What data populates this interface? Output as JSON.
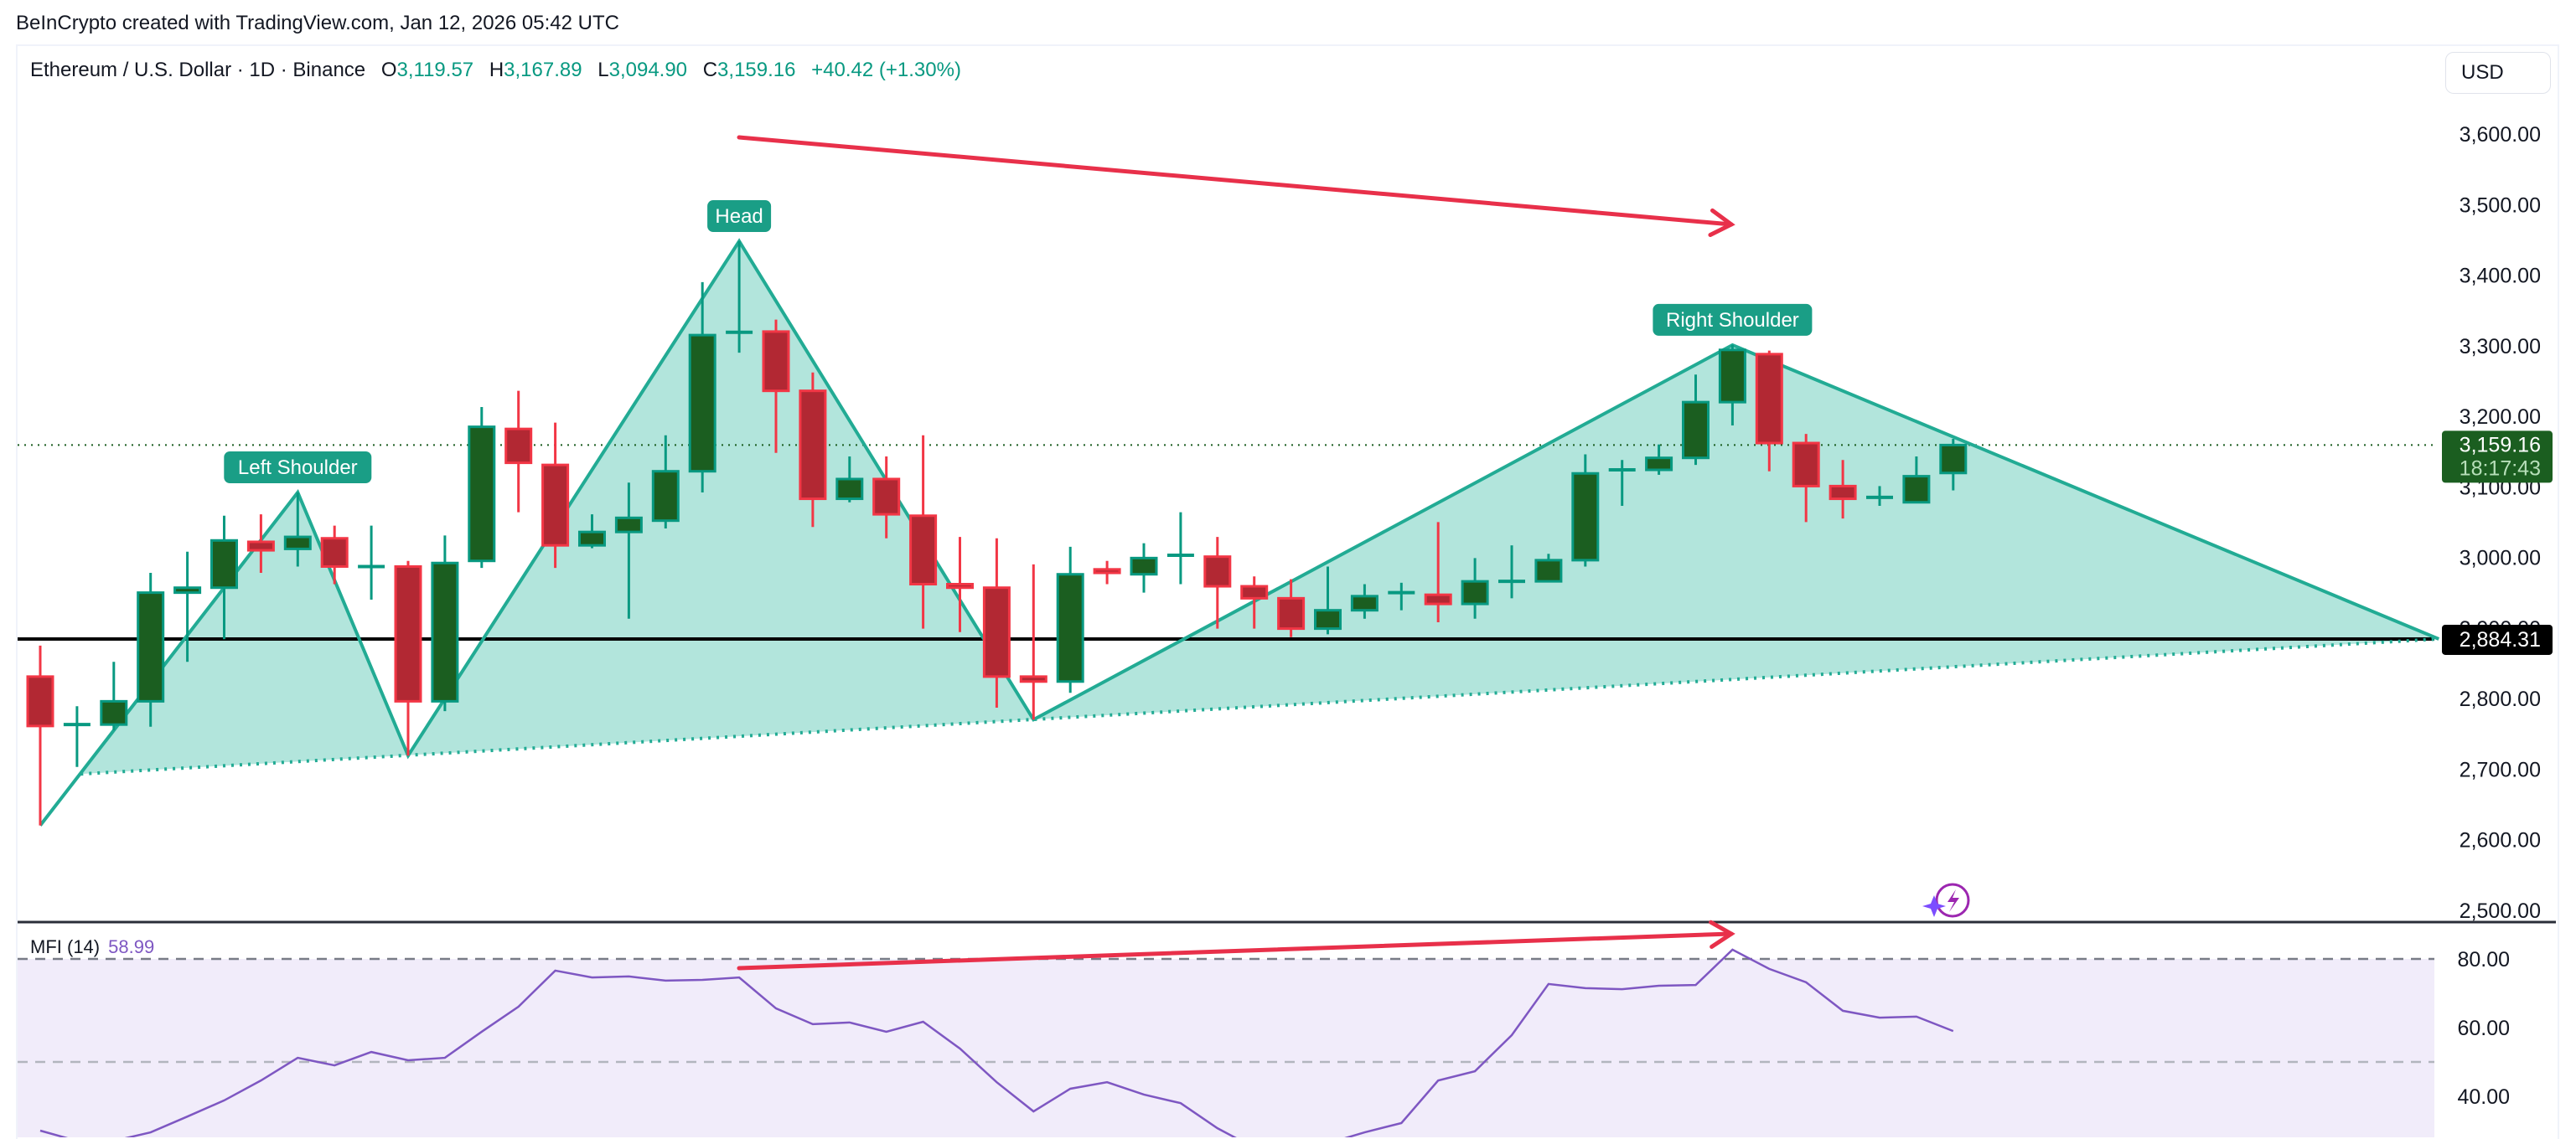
{
  "header": {
    "attribution": "BeInCrypto created with TradingView.com, Jan 12, 2026 05:42 UTC"
  },
  "legend": {
    "symbol": "Ethereum / U.S. Dollar · 1D · Binance",
    "open_label": "O",
    "open": "3,119.57",
    "high_label": "H",
    "high": "3,167.89",
    "low_label": "L",
    "low": "3,094.90",
    "close_label": "C",
    "close": "3,159.16",
    "change": "+40.42 (+1.30%)"
  },
  "currency_button": "USD",
  "mfi_legend": {
    "name": "MFI (14)",
    "value": "58.99"
  },
  "colors": {
    "up_body": "#1b5e20",
    "up_border": "#089981",
    "down_body": "#b22833",
    "down_border": "#f23645",
    "pattern_line": "#22ab94",
    "pattern_fill": "#b2e5dc",
    "label_bg": "#1a9e86",
    "arrow": "#e8304a",
    "mfi_line": "#7e57c2",
    "mfi_bg": "#f1ecfa",
    "last_price_tag": "#1b5e20",
    "level_tag": "#000000"
  },
  "price_axis": {
    "ticks": [
      "3,600.00",
      "3,500.00",
      "3,400.00",
      "3,300.00",
      "3,200.00",
      "3,100.00",
      "3,000.00",
      "2,900.00",
      "2,800.00",
      "2,700.00",
      "2,600.00",
      "2,500.00"
    ],
    "last_price": "3,159.16",
    "countdown": "18:17:43",
    "level_price": "2,884.31"
  },
  "mfi_axis": {
    "ticks": [
      "80.00",
      "60.00",
      "40.00"
    ]
  },
  "annotations": {
    "left_shoulder": "Left Shoulder",
    "head": "Head",
    "right_shoulder": "Right Shoulder"
  },
  "chart_data": [
    {
      "type": "candlestick",
      "title": "Ethereum / U.S. Dollar · 1D · Binance",
      "ylabel": "USD",
      "ylim": [
        2500,
        3600
      ],
      "grid": false,
      "annotations": [
        "Left Shoulder",
        "Head",
        "Right Shoulder",
        "Neckline (dotted)",
        "Horizontal level 2,884.31",
        "Bearish divergence arrow (price lower highs)"
      ],
      "ohlc": [
        [
          2831,
          2875,
          2620,
          2761
        ],
        [
          2763,
          2789,
          2703,
          2763
        ],
        [
          2763,
          2852,
          2755,
          2796
        ],
        [
          2796,
          2978,
          2760,
          2950
        ],
        [
          2950,
          3008,
          2852,
          2957
        ],
        [
          2957,
          3059,
          2884,
          3024
        ],
        [
          3022,
          3061,
          2978,
          3010
        ],
        [
          3012,
          3092,
          2987,
          3029
        ],
        [
          3027,
          3045,
          2962,
          2987
        ],
        [
          2987,
          3045,
          2940,
          2987
        ],
        [
          2987,
          2995,
          2719,
          2796
        ],
        [
          2796,
          3031,
          2782,
          2992
        ],
        [
          2995,
          3213,
          2985,
          3185
        ],
        [
          3182,
          3236,
          3064,
          3134
        ],
        [
          3131,
          3191,
          2985,
          3017
        ],
        [
          3017,
          3061,
          3013,
          3036
        ],
        [
          3036,
          3106,
          2913,
          3056
        ],
        [
          3052,
          3173,
          3041,
          3122
        ],
        [
          3122,
          3390,
          3092,
          3315
        ],
        [
          3318,
          3448,
          3290,
          3319
        ],
        [
          3320,
          3337,
          3148,
          3236
        ],
        [
          3236,
          3262,
          3043,
          3083
        ],
        [
          3083,
          3143,
          3078,
          3111
        ],
        [
          3111,
          3143,
          3027,
          3061
        ],
        [
          3059,
          3173,
          2899,
          2962
        ],
        [
          2962,
          3029,
          2894,
          2957
        ],
        [
          2957,
          3027,
          2787,
          2831
        ],
        [
          2831,
          2990,
          2770,
          2824
        ],
        [
          2824,
          3015,
          2808,
          2976
        ],
        [
          2983,
          2995,
          2962,
          2978
        ],
        [
          2976,
          3020,
          2950,
          2999
        ],
        [
          3003,
          3064,
          2962,
          3003
        ],
        [
          3001,
          3029,
          2899,
          2959
        ],
        [
          2959,
          2973,
          2899,
          2942
        ],
        [
          2942,
          2969,
          2887,
          2899
        ],
        [
          2899,
          2987,
          2891,
          2925
        ],
        [
          2925,
          2962,
          2913,
          2945
        ],
        [
          2950,
          2964,
          2925,
          2950
        ],
        [
          2947,
          3050,
          2908,
          2934
        ],
        [
          2934,
          2999,
          2913,
          2966
        ],
        [
          2966,
          3017,
          2942,
          2966
        ],
        [
          2966,
          3005,
          2966,
          2996
        ],
        [
          2996,
          3146,
          2987,
          3119
        ],
        [
          3124,
          3138,
          3073,
          3124
        ],
        [
          3124,
          3160,
          3117,
          3141
        ],
        [
          3141,
          3259,
          3131,
          3220
        ],
        [
          3220,
          3301,
          3187,
          3294
        ],
        [
          3288,
          3293,
          3122,
          3162
        ],
        [
          3162,
          3175,
          3050,
          3101
        ],
        [
          3101,
          3138,
          3055,
          3083
        ],
        [
          3085,
          3101,
          3073,
          3085
        ],
        [
          3078,
          3143,
          3078,
          3115
        ],
        [
          3119.57,
          3167.89,
          3094.9,
          3159.16
        ]
      ],
      "pattern": {
        "points": [
          [
            0,
            2620
          ],
          [
            7,
            3092
          ],
          [
            10,
            2719
          ],
          [
            19,
            3448
          ],
          [
            27,
            2770
          ],
          [
            46,
            3301
          ],
          [
            65.2,
            2884.31
          ]
        ],
        "neckline": [
          [
            1.1,
            2693
          ],
          [
            65.2,
            2884.31
          ]
        ]
      },
      "levels": {
        "last_price": 3159.16,
        "horizontal": 2884.31
      }
    },
    {
      "type": "line",
      "title": "MFI (14)",
      "ylim": [
        30,
        90
      ],
      "bands": [
        80,
        50
      ],
      "ticks": [
        80,
        60,
        40
      ],
      "series": [
        {
          "name": "MFI (14)",
          "values": [
            30,
            27,
            27,
            29.5,
            34.1,
            38.8,
            44.6,
            51.2,
            49,
            52.9,
            50.5,
            51.2,
            58.8,
            66.1,
            76.6,
            74.6,
            74.9,
            73.7,
            73.9,
            74.6,
            65.6,
            61,
            61.5,
            58.8,
            61.7,
            53.9,
            44.1,
            35.6,
            42.2,
            44.1,
            40.5,
            38,
            30.7,
            25,
            24,
            26.3,
            29.5,
            32.2,
            44.6,
            47.3,
            57.8,
            72.7,
            71.5,
            71.2,
            72.2,
            72.4,
            82.7,
            77.1,
            73.2,
            64.9,
            62.9,
            63.2,
            58.99
          ]
        }
      ],
      "annotations": [
        "Rising arrow (MFI higher highs)"
      ]
    }
  ]
}
